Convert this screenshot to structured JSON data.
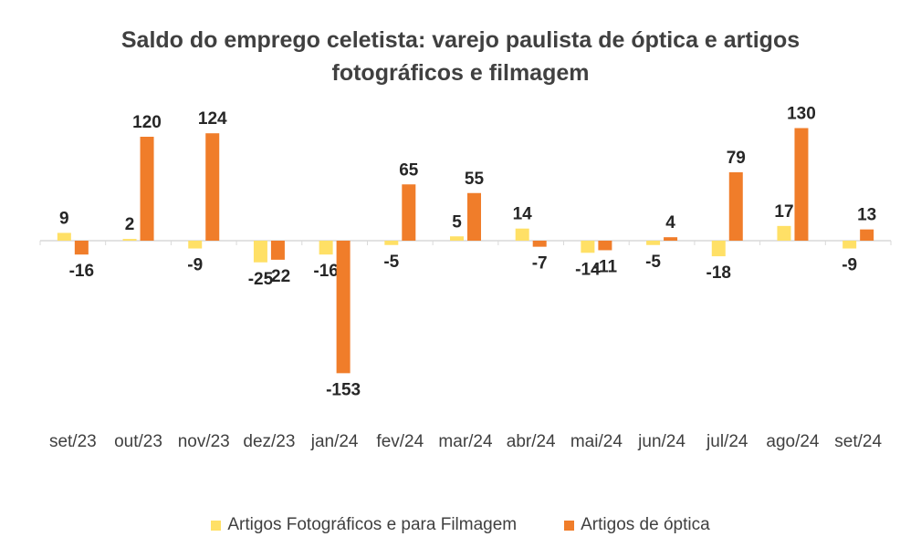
{
  "chart_data": {
    "type": "bar",
    "title_line1": "Saldo do emprego celetista: varejo paulista de óptica e artigos",
    "title_line2": "fotográficos e filmagem",
    "categories": [
      "set/23",
      "out/23",
      "nov/23",
      "dez/23",
      "jan/24",
      "fev/24",
      "mar/24",
      "abr/24",
      "mai/24",
      "jun/24",
      "jul/24",
      "ago/24",
      "set/24"
    ],
    "series": [
      {
        "name": "Artigos Fotográficos e para Filmagem",
        "color": "#FFE066",
        "values": [
          9,
          2,
          -9,
          -25,
          -16,
          -5,
          5,
          14,
          -14,
          -5,
          -18,
          17,
          -9
        ]
      },
      {
        "name": "Artigos de óptica",
        "color": "#F07D2A",
        "values": [
          -16,
          120,
          124,
          -22,
          -153,
          65,
          55,
          -7,
          -11,
          4,
          79,
          130,
          13
        ]
      }
    ],
    "grid": false,
    "legend_position": "bottom"
  }
}
